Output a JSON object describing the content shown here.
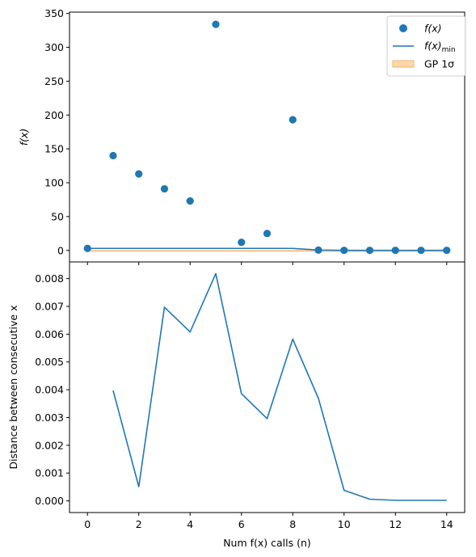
{
  "colors": {
    "series": "#1f77b4",
    "band_fill": "#ffd7a8",
    "band_edge": "#f5b070",
    "legend_border": "#cccccc"
  },
  "chart_data": [
    {
      "type": "scatter",
      "ylabel": "f(x)",
      "xlim": [
        -0.7,
        14.7
      ],
      "ylim": [
        -17,
        352
      ],
      "xticks": [
        0,
        2,
        4,
        6,
        8,
        10,
        12,
        14
      ],
      "yticks": [
        0,
        50,
        100,
        150,
        200,
        250,
        300,
        350
      ],
      "ytick_labels": [
        "0",
        "50",
        "100",
        "150",
        "200",
        "250",
        "300",
        "350"
      ],
      "legend_position": "top-right",
      "series": [
        {
          "name": "f(x)",
          "kind": "scatter",
          "x": [
            0,
            1,
            2,
            3,
            4,
            5,
            6,
            7,
            8,
            9,
            10,
            11,
            12,
            13,
            14
          ],
          "values": [
            3,
            140,
            113,
            91,
            73,
            334,
            12,
            25,
            193,
            0.5,
            0.1,
            0.1,
            0.1,
            0.1,
            0.1
          ]
        },
        {
          "name": "f(x)_min",
          "kind": "line",
          "x": [
            0,
            1,
            2,
            3,
            4,
            5,
            6,
            7,
            8,
            9,
            10,
            11,
            12,
            13,
            14
          ],
          "values": [
            3,
            3,
            3,
            3,
            3,
            3,
            3,
            3,
            3,
            0.5,
            0.1,
            0.1,
            0.1,
            0.1,
            0.1
          ]
        },
        {
          "name": "GP 1σ",
          "kind": "band",
          "x": [
            0,
            14
          ],
          "lower": [
            -1,
            -1
          ],
          "upper": [
            0.3,
            0.3
          ]
        }
      ],
      "legend": {
        "fx_label": "f(x)",
        "fmin_main": "f(x)",
        "fmin_sub": "min",
        "gp_label": "GP 1σ"
      }
    },
    {
      "type": "line",
      "xlabel": "Num f(x) calls (n)",
      "ylabel": "Distance between consecutive x",
      "xlim": [
        -0.7,
        14.7
      ],
      "ylim": [
        -0.00042,
        0.0086
      ],
      "xticks": [
        0,
        2,
        4,
        6,
        8,
        10,
        12,
        14
      ],
      "xtick_labels": [
        "0",
        "2",
        "4",
        "6",
        "8",
        "10",
        "12",
        "14"
      ],
      "yticks": [
        0,
        0.001,
        0.002,
        0.003,
        0.004,
        0.005,
        0.006,
        0.007,
        0.008
      ],
      "ytick_labels": [
        "0.000",
        "0.001",
        "0.002",
        "0.003",
        "0.004",
        "0.005",
        "0.006",
        "0.007",
        "0.008"
      ],
      "series": [
        {
          "x": [
            1,
            2,
            3,
            4,
            5,
            6,
            7,
            8,
            9,
            10,
            11,
            12,
            13,
            14
          ],
          "values": [
            0.00397,
            0.00051,
            0.00697,
            0.00608,
            0.00818,
            0.00386,
            0.00296,
            0.00582,
            0.00369,
            0.00038,
            6e-05,
            2e-05,
            2e-05,
            2e-05
          ]
        }
      ]
    }
  ]
}
